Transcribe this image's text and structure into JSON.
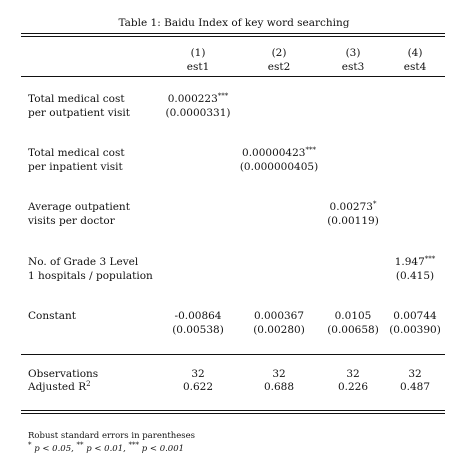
{
  "title": "Table 1: Baidu Index of key word searching",
  "columns": [
    {
      "num": "(1)",
      "name": "est1"
    },
    {
      "num": "(2)",
      "name": "est2"
    },
    {
      "num": "(3)",
      "name": "est3"
    },
    {
      "num": "(4)",
      "name": "est4"
    }
  ],
  "rows": [
    {
      "label1": "Total medical cost",
      "label2": "per outpatient visit",
      "coef": "0.000223",
      "stars": "***",
      "se": "(0.0000331)",
      "col": 0
    },
    {
      "label1": "Total medical cost",
      "label2": "per inpatient visit",
      "coef": "0.00000423",
      "stars": "***",
      "se": "(0.000000405)",
      "col": 1
    },
    {
      "label1": "Average outpatient",
      "label2": "visits per doctor",
      "coef": "0.00273",
      "stars": "*",
      "se": "(0.00119)",
      "col": 2
    },
    {
      "label1": "No. of Grade 3 Level",
      "label2": "1 hospitals / population",
      "coef": "1.947",
      "stars": "***",
      "se": "(0.415)",
      "col": 3
    }
  ],
  "constant": {
    "label": "Constant",
    "coefs": [
      "-0.00864",
      "0.000367",
      "0.0105",
      "0.00744"
    ],
    "ses": [
      "(0.00538)",
      "(0.00280)",
      "(0.00658)",
      "(0.00390)"
    ]
  },
  "stats": {
    "obs_label": "Observations",
    "obs": [
      "32",
      "32",
      "32",
      "32"
    ],
    "r2_label": "Adjusted R",
    "r2_sup": "2",
    "r2": [
      "0.622",
      "0.688",
      "0.226",
      "0.487"
    ]
  },
  "notes": {
    "line1": "Robust standard errors in parentheses",
    "s1": "*",
    "p1": "p < 0.05,",
    "s2": "**",
    "p2": "p < 0.01,",
    "s3": "***",
    "p3": "p < 0.001"
  }
}
